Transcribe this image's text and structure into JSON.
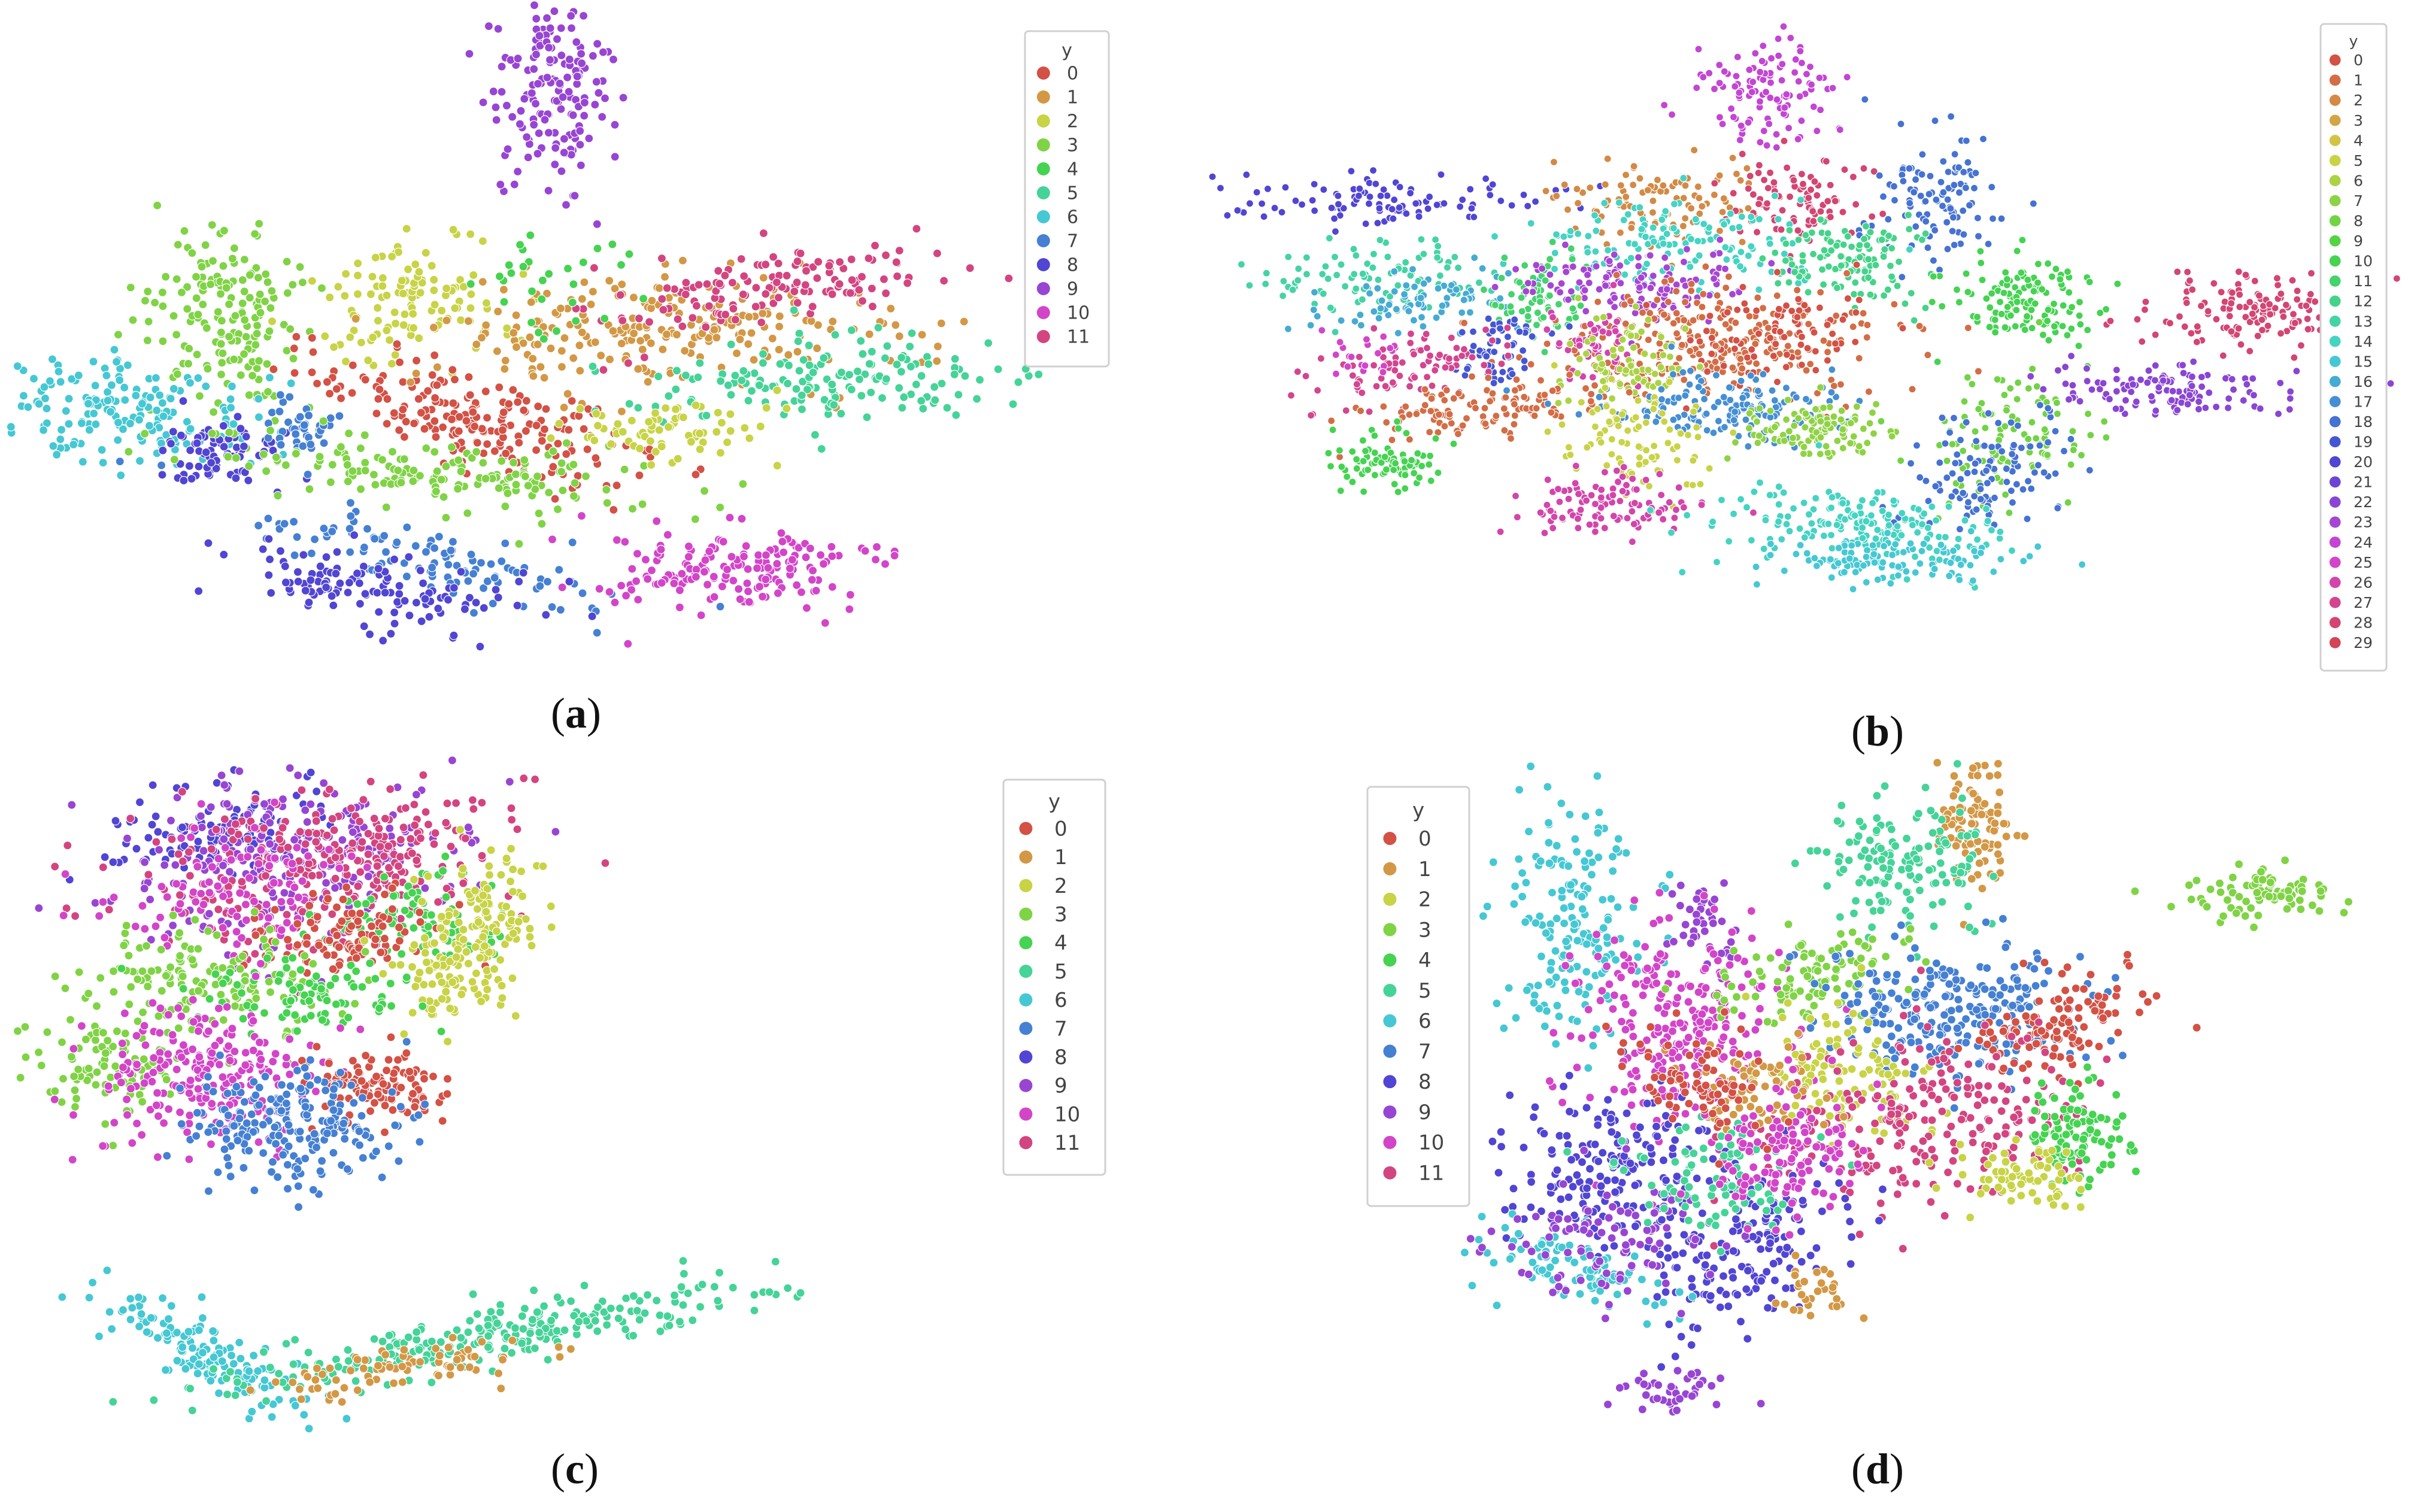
{
  "chart_data": [
    {
      "type": "scatter",
      "panel_label": "a",
      "legend": {
        "title": "y",
        "entries": [
          "0",
          "1",
          "2",
          "3",
          "4",
          "5",
          "6",
          "7",
          "8",
          "9",
          "10",
          "11"
        ],
        "placement": "top-right"
      },
      "clusters": [
        {
          "label": "9",
          "cx": 0.51,
          "cy": 0.08,
          "sx": 0.03,
          "sy": 0.08,
          "n": 160,
          "angle": 0
        },
        {
          "label": "3",
          "cx": 0.18,
          "cy": 0.45,
          "sx": 0.045,
          "sy": 0.08,
          "n": 170,
          "angle": 0
        },
        {
          "label": "6",
          "cx": 0.06,
          "cy": 0.61,
          "sx": 0.07,
          "sy": 0.04,
          "n": 170,
          "angle": 5
        },
        {
          "label": "8",
          "cx": 0.17,
          "cy": 0.68,
          "sx": 0.035,
          "sy": 0.03,
          "n": 80,
          "angle": 0
        },
        {
          "label": "7",
          "cx": 0.25,
          "cy": 0.63,
          "sx": 0.02,
          "sy": 0.03,
          "n": 40,
          "angle": 0
        },
        {
          "label": "2",
          "cx": 0.36,
          "cy": 0.42,
          "sx": 0.05,
          "sy": 0.05,
          "n": 120,
          "angle": 0
        },
        {
          "label": "0",
          "cx": 0.44,
          "cy": 0.62,
          "sx": 0.1,
          "sy": 0.035,
          "n": 200,
          "angle": 28
        },
        {
          "label": "3",
          "cx": 0.38,
          "cy": 0.71,
          "sx": 0.12,
          "sy": 0.03,
          "n": 160,
          "angle": 8
        },
        {
          "label": "7",
          "cx": 0.4,
          "cy": 0.86,
          "sx": 0.1,
          "sy": 0.025,
          "n": 110,
          "angle": 22
        },
        {
          "label": "8",
          "cx": 0.33,
          "cy": 0.9,
          "sx": 0.07,
          "sy": 0.03,
          "n": 120,
          "angle": 15
        },
        {
          "label": "1",
          "cx": 0.63,
          "cy": 0.47,
          "sx": 0.13,
          "sy": 0.05,
          "n": 240,
          "angle": 0
        },
        {
          "label": "11",
          "cx": 0.73,
          "cy": 0.4,
          "sx": 0.1,
          "sy": 0.03,
          "n": 140,
          "angle": -15
        },
        {
          "label": "5",
          "cx": 0.81,
          "cy": 0.55,
          "sx": 0.1,
          "sy": 0.035,
          "n": 160,
          "angle": -5
        },
        {
          "label": "2",
          "cx": 0.63,
          "cy": 0.63,
          "sx": 0.05,
          "sy": 0.03,
          "n": 70,
          "angle": 0
        },
        {
          "label": "10",
          "cx": 0.7,
          "cy": 0.87,
          "sx": 0.08,
          "sy": 0.035,
          "n": 170,
          "angle": -5
        },
        {
          "label": "4",
          "cx": 0.52,
          "cy": 0.38,
          "sx": 0.04,
          "sy": 0.04,
          "n": 30,
          "angle": 0
        }
      ]
    },
    {
      "type": "scatter",
      "panel_label": "b",
      "legend": {
        "title": "y",
        "entries": [
          "0",
          "1",
          "2",
          "3",
          "4",
          "5",
          "6",
          "7",
          "8",
          "9",
          "10",
          "11",
          "12",
          "13",
          "14",
          "15",
          "16",
          "17",
          "18",
          "19",
          "20",
          "21",
          "22",
          "23",
          "24",
          "25",
          "26",
          "27",
          "28",
          "29"
        ],
        "placement": "top-right"
      },
      "clusters": [
        {
          "label": "24",
          "cx": 0.46,
          "cy": 0.08,
          "sx": 0.035,
          "sy": 0.05,
          "n": 110,
          "angle": 0
        },
        {
          "label": "20",
          "cx": 0.07,
          "cy": 0.27,
          "sx": 0.08,
          "sy": 0.02,
          "n": 110,
          "angle": 0
        },
        {
          "label": "2",
          "cx": 0.35,
          "cy": 0.27,
          "sx": 0.05,
          "sy": 0.04,
          "n": 110,
          "angle": 0
        },
        {
          "label": "28",
          "cx": 0.49,
          "cy": 0.27,
          "sx": 0.035,
          "sy": 0.04,
          "n": 90,
          "angle": 0
        },
        {
          "label": "18",
          "cx": 0.63,
          "cy": 0.27,
          "sx": 0.03,
          "sy": 0.05,
          "n": 110,
          "angle": 0
        },
        {
          "label": "14",
          "cx": 0.37,
          "cy": 0.34,
          "sx": 0.07,
          "sy": 0.04,
          "n": 140,
          "angle": 10
        },
        {
          "label": "13",
          "cx": 0.07,
          "cy": 0.4,
          "sx": 0.06,
          "sy": 0.03,
          "n": 100,
          "angle": -10
        },
        {
          "label": "16",
          "cx": 0.12,
          "cy": 0.44,
          "sx": 0.05,
          "sy": 0.03,
          "n": 80,
          "angle": 0
        },
        {
          "label": "11",
          "cx": 0.23,
          "cy": 0.44,
          "sx": 0.025,
          "sy": 0.04,
          "n": 70,
          "angle": 0
        },
        {
          "label": "23",
          "cx": 0.33,
          "cy": 0.42,
          "sx": 0.06,
          "sy": 0.03,
          "n": 130,
          "angle": 0
        },
        {
          "label": "12",
          "cx": 0.54,
          "cy": 0.37,
          "sx": 0.04,
          "sy": 0.04,
          "n": 120,
          "angle": 0
        },
        {
          "label": "10",
          "cx": 0.72,
          "cy": 0.44,
          "sx": 0.04,
          "sy": 0.04,
          "n": 130,
          "angle": 0
        },
        {
          "label": "28",
          "cx": 0.93,
          "cy": 0.46,
          "sx": 0.05,
          "sy": 0.035,
          "n": 130,
          "angle": 0
        },
        {
          "label": "1",
          "cx": 0.4,
          "cy": 0.52,
          "sx": 0.09,
          "sy": 0.05,
          "n": 260,
          "angle": 0
        },
        {
          "label": "0",
          "cx": 0.47,
          "cy": 0.5,
          "sx": 0.05,
          "sy": 0.05,
          "n": 90,
          "angle": 0
        },
        {
          "label": "19",
          "cx": 0.19,
          "cy": 0.53,
          "sx": 0.02,
          "sy": 0.035,
          "n": 60,
          "angle": 0
        },
        {
          "label": "27",
          "cx": 0.11,
          "cy": 0.56,
          "sx": 0.05,
          "sy": 0.03,
          "n": 90,
          "angle": -15
        },
        {
          "label": "25",
          "cx": 0.06,
          "cy": 0.53,
          "sx": 0.02,
          "sy": 0.02,
          "n": 20,
          "angle": 0
        },
        {
          "label": "26",
          "cx": 0.29,
          "cy": 0.52,
          "sx": 0.025,
          "sy": 0.035,
          "n": 50,
          "angle": 0
        },
        {
          "label": "6",
          "cx": 0.32,
          "cy": 0.56,
          "sx": 0.03,
          "sy": 0.05,
          "n": 80,
          "angle": 0
        },
        {
          "label": "1",
          "cx": 0.18,
          "cy": 0.63,
          "sx": 0.07,
          "sy": 0.025,
          "n": 120,
          "angle": -15
        },
        {
          "label": "17",
          "cx": 0.42,
          "cy": 0.63,
          "sx": 0.06,
          "sy": 0.03,
          "n": 140,
          "angle": 0
        },
        {
          "label": "5",
          "cx": 0.32,
          "cy": 0.69,
          "sx": 0.035,
          "sy": 0.05,
          "n": 90,
          "angle": -30
        },
        {
          "label": "7",
          "cx": 0.5,
          "cy": 0.67,
          "sx": 0.04,
          "sy": 0.03,
          "n": 110,
          "angle": 0
        },
        {
          "label": "8",
          "cx": 0.7,
          "cy": 0.69,
          "sx": 0.04,
          "sy": 0.06,
          "n": 110,
          "angle": 20
        },
        {
          "label": "18",
          "cx": 0.68,
          "cy": 0.75,
          "sx": 0.035,
          "sy": 0.05,
          "n": 110,
          "angle": 25
        },
        {
          "label": "22",
          "cx": 0.87,
          "cy": 0.6,
          "sx": 0.06,
          "sy": 0.025,
          "n": 120,
          "angle": 5
        },
        {
          "label": "10",
          "cx": 0.08,
          "cy": 0.73,
          "sx": 0.03,
          "sy": 0.025,
          "n": 80,
          "angle": 0
        },
        {
          "label": "26",
          "cx": 0.3,
          "cy": 0.8,
          "sx": 0.05,
          "sy": 0.03,
          "n": 110,
          "angle": 0
        },
        {
          "label": "14",
          "cx": 0.55,
          "cy": 0.84,
          "sx": 0.07,
          "sy": 0.035,
          "n": 180,
          "angle": 10
        },
        {
          "label": "15",
          "cx": 0.58,
          "cy": 0.9,
          "sx": 0.06,
          "sy": 0.02,
          "n": 110,
          "angle": 0
        }
      ]
    },
    {
      "type": "scatter",
      "panel_label": "c",
      "legend": {
        "title": "y",
        "entries": [
          "0",
          "1",
          "2",
          "3",
          "4",
          "5",
          "6",
          "7",
          "8",
          "9",
          "10",
          "11"
        ],
        "placement": "top-right"
      },
      "clusters": [
        {
          "label": "8",
          "cx": 0.14,
          "cy": 0.06,
          "sx": 0.06,
          "sy": 0.03,
          "n": 110,
          "angle": -10
        },
        {
          "label": "9",
          "cx": 0.22,
          "cy": 0.1,
          "sx": 0.1,
          "sy": 0.06,
          "n": 260,
          "angle": -12
        },
        {
          "label": "11",
          "cx": 0.26,
          "cy": 0.1,
          "sx": 0.1,
          "sy": 0.05,
          "n": 280,
          "angle": -12
        },
        {
          "label": "10",
          "cx": 0.16,
          "cy": 0.14,
          "sx": 0.06,
          "sy": 0.04,
          "n": 100,
          "angle": -10
        },
        {
          "label": "4",
          "cx": 0.35,
          "cy": 0.18,
          "sx": 0.05,
          "sy": 0.03,
          "n": 90,
          "angle": 0
        },
        {
          "label": "0",
          "cx": 0.27,
          "cy": 0.2,
          "sx": 0.05,
          "sy": 0.03,
          "n": 110,
          "angle": -10
        },
        {
          "label": "2",
          "cx": 0.42,
          "cy": 0.17,
          "sx": 0.03,
          "sy": 0.04,
          "n": 100,
          "angle": 0
        },
        {
          "label": "2",
          "cx": 0.38,
          "cy": 0.25,
          "sx": 0.03,
          "sy": 0.04,
          "n": 90,
          "angle": 0
        },
        {
          "label": "3",
          "cx": 0.12,
          "cy": 0.26,
          "sx": 0.07,
          "sy": 0.04,
          "n": 150,
          "angle": -5
        },
        {
          "label": "4",
          "cx": 0.24,
          "cy": 0.28,
          "sx": 0.06,
          "sy": 0.025,
          "n": 90,
          "angle": 0
        },
        {
          "label": "3",
          "cx": 0.03,
          "cy": 0.38,
          "sx": 0.04,
          "sy": 0.03,
          "n": 90,
          "angle": 0
        },
        {
          "label": "10",
          "cx": 0.13,
          "cy": 0.39,
          "sx": 0.06,
          "sy": 0.05,
          "n": 220,
          "angle": -5
        },
        {
          "label": "0",
          "cx": 0.31,
          "cy": 0.4,
          "sx": 0.04,
          "sy": 0.025,
          "n": 110,
          "angle": 0
        },
        {
          "label": "7",
          "cx": 0.22,
          "cy": 0.46,
          "sx": 0.06,
          "sy": 0.04,
          "n": 220,
          "angle": 0
        },
        {
          "label": "6",
          "cx": 0.13,
          "cy": 0.76,
          "sx": 0.06,
          "sy": 0.018,
          "n": 150,
          "angle": 38
        },
        {
          "label": "5",
          "cx": 0.44,
          "cy": 0.73,
          "sx": 0.15,
          "sy": 0.018,
          "n": 260,
          "angle": -13
        },
        {
          "label": "1",
          "cx": 0.32,
          "cy": 0.78,
          "sx": 0.07,
          "sy": 0.015,
          "n": 80,
          "angle": -8
        }
      ]
    },
    {
      "type": "scatter",
      "panel_label": "d",
      "legend": {
        "title": "y",
        "entries": [
          "0",
          "1",
          "2",
          "3",
          "4",
          "5",
          "6",
          "7",
          "8",
          "9",
          "10",
          "11"
        ],
        "placement": "top-left"
      },
      "clusters": [
        {
          "label": "1",
          "cx": 0.55,
          "cy": 0.06,
          "sx": 0.02,
          "sy": 0.06,
          "n": 100,
          "angle": 0
        },
        {
          "label": "5",
          "cx": 0.47,
          "cy": 0.12,
          "sx": 0.05,
          "sy": 0.05,
          "n": 140,
          "angle": 0
        },
        {
          "label": "6",
          "cx": 0.1,
          "cy": 0.19,
          "sx": 0.04,
          "sy": 0.1,
          "n": 170,
          "angle": 0
        },
        {
          "label": "9",
          "cx": 0.25,
          "cy": 0.2,
          "sx": 0.02,
          "sy": 0.03,
          "n": 40,
          "angle": 0
        },
        {
          "label": "10",
          "cx": 0.22,
          "cy": 0.36,
          "sx": 0.06,
          "sy": 0.08,
          "n": 260,
          "angle": 0
        },
        {
          "label": "3",
          "cx": 0.87,
          "cy": 0.16,
          "sx": 0.04,
          "sy": 0.02,
          "n": 80,
          "angle": -10
        },
        {
          "label": "3",
          "cx": 0.37,
          "cy": 0.28,
          "sx": 0.05,
          "sy": 0.03,
          "n": 100,
          "angle": -10
        },
        {
          "label": "7",
          "cx": 0.52,
          "cy": 0.34,
          "sx": 0.08,
          "sy": 0.05,
          "n": 260,
          "angle": 0
        },
        {
          "label": "0",
          "cx": 0.64,
          "cy": 0.35,
          "sx": 0.06,
          "sy": 0.03,
          "n": 120,
          "angle": -35
        },
        {
          "label": "2",
          "cx": 0.4,
          "cy": 0.43,
          "sx": 0.04,
          "sy": 0.05,
          "n": 110,
          "angle": -20
        },
        {
          "label": "11",
          "cx": 0.49,
          "cy": 0.5,
          "sx": 0.09,
          "sy": 0.06,
          "n": 240,
          "angle": -20
        },
        {
          "label": "8",
          "cx": 0.15,
          "cy": 0.58,
          "sx": 0.07,
          "sy": 0.06,
          "n": 200,
          "angle": 10
        },
        {
          "label": "4",
          "cx": 0.66,
          "cy": 0.52,
          "sx": 0.03,
          "sy": 0.035,
          "n": 100,
          "angle": 0
        },
        {
          "label": "8",
          "cx": 0.29,
          "cy": 0.7,
          "sx": 0.05,
          "sy": 0.07,
          "n": 160,
          "angle": 30
        },
        {
          "label": "6",
          "cx": 0.1,
          "cy": 0.72,
          "sx": 0.05,
          "sy": 0.03,
          "n": 100,
          "angle": 15
        },
        {
          "label": "2",
          "cx": 0.6,
          "cy": 0.58,
          "sx": 0.04,
          "sy": 0.025,
          "n": 70,
          "angle": 0
        },
        {
          "label": "9",
          "cx": 0.14,
          "cy": 0.68,
          "sx": 0.06,
          "sy": 0.04,
          "n": 100,
          "angle": 0
        },
        {
          "label": "1",
          "cx": 0.3,
          "cy": 0.45,
          "sx": 0.04,
          "sy": 0.03,
          "n": 70,
          "angle": 0
        },
        {
          "label": "5",
          "cx": 0.26,
          "cy": 0.58,
          "sx": 0.05,
          "sy": 0.04,
          "n": 90,
          "angle": 0
        },
        {
          "label": "9",
          "cx": 0.21,
          "cy": 0.9,
          "sx": 0.03,
          "sy": 0.015,
          "n": 40,
          "angle": 0
        },
        {
          "label": "10",
          "cx": 0.34,
          "cy": 0.55,
          "sx": 0.05,
          "sy": 0.05,
          "n": 120,
          "angle": 0
        },
        {
          "label": "1",
          "cx": 0.37,
          "cy": 0.75,
          "sx": 0.02,
          "sy": 0.02,
          "n": 30,
          "angle": 0
        },
        {
          "label": "0",
          "cx": 0.24,
          "cy": 0.45,
          "sx": 0.04,
          "sy": 0.05,
          "n": 80,
          "angle": -30
        }
      ]
    }
  ]
}
